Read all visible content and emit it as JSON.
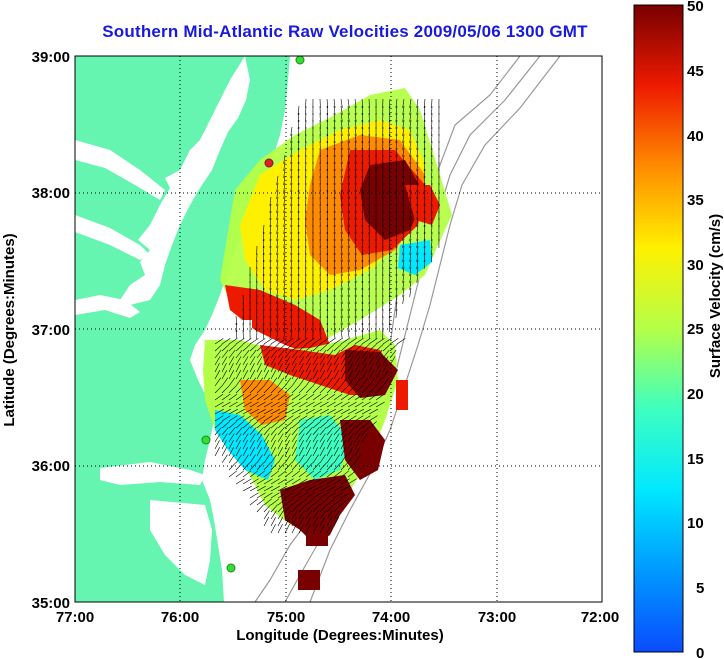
{
  "title": "Southern Mid-Atlantic Raw Velocities 2009/05/06 1300 GMT",
  "xlabel": "Longitude (Degrees:Minutes)",
  "ylabel": "Latitude (Degrees:Minutes)",
  "colorbar_label": "Surface Velocity (cm/s)",
  "x_ticks": [
    "77:00",
    "76:00",
    "75:00",
    "74:00",
    "73:00",
    "72:00"
  ],
  "y_ticks": [
    "39:00",
    "38:00",
    "37:00",
    "36:00",
    "35:00"
  ],
  "colorbar_ticks": [
    "50",
    "45",
    "40",
    "35",
    "30",
    "25",
    "20",
    "15",
    "10",
    "5",
    "0"
  ],
  "colors": {
    "title": "#1a1adc",
    "land": "#66f5b0",
    "ocean": "#ffffff",
    "vector": "#000000",
    "station": "#33dd33",
    "station_inactive": "#dd2222"
  },
  "chart_data": {
    "type": "heatmap",
    "title": "Southern Mid-Atlantic Raw Velocities 2009/05/06 1300 GMT",
    "xlabel": "Longitude (Degrees:Minutes)",
    "ylabel": "Latitude (Degrees:Minutes)",
    "xlim": [
      -77,
      -72
    ],
    "ylim": [
      35,
      39
    ],
    "color_scale": {
      "label": "Surface Velocity (cm/s)",
      "min": 0,
      "max": 50,
      "colormap": "jet"
    },
    "grid": true
  }
}
